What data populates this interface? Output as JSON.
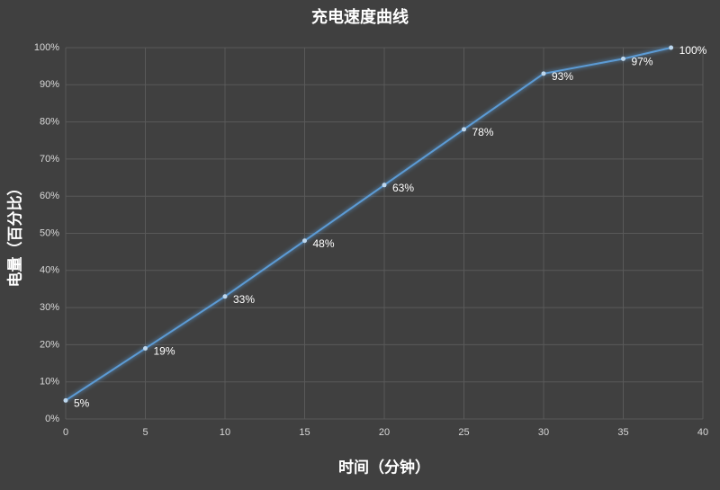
{
  "chart_data": {
    "type": "line",
    "title": "充电速度曲线",
    "x_label": "时间（分钟）",
    "y_label": "电量（百分比）",
    "x": [
      0,
      5,
      10,
      15,
      20,
      25,
      30,
      35,
      38
    ],
    "series": [
      {
        "name": "电量",
        "color": "#5b9bd5",
        "values": [
          5,
          19,
          33,
          48,
          63,
          78,
          93,
          97,
          100
        ],
        "value_labels": [
          "5%",
          "19%",
          "33%",
          "48%",
          "63%",
          "78%",
          "93%",
          "97%",
          "100%"
        ]
      }
    ],
    "xlim": [
      0,
      40
    ],
    "xticks": [
      0,
      5,
      10,
      15,
      20,
      25,
      30,
      35,
      40
    ],
    "ylim": [
      0,
      100
    ],
    "yticks": [
      {
        "value": 0,
        "label": "0%"
      },
      {
        "value": 10,
        "label": "10%"
      },
      {
        "value": 20,
        "label": "20%"
      },
      {
        "value": 30,
        "label": "30%"
      },
      {
        "value": 40,
        "label": "40%"
      },
      {
        "value": 50,
        "label": "50%"
      },
      {
        "value": 60,
        "label": "60%"
      },
      {
        "value": 70,
        "label": "70%"
      },
      {
        "value": 80,
        "label": "80%"
      },
      {
        "value": 90,
        "label": "90%"
      },
      {
        "value": 100,
        "label": "100%"
      }
    ],
    "grid": true
  }
}
